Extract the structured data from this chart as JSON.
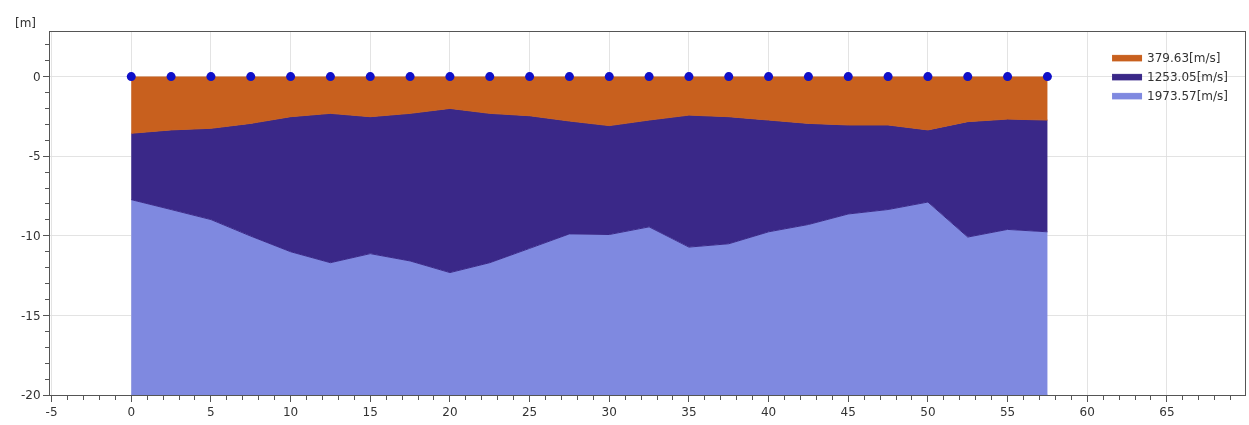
{
  "chart_data": {
    "type": "area",
    "ylabel": "[m]",
    "stacked": true,
    "x": [
      0,
      2.5,
      5,
      7.5,
      10,
      12.5,
      15,
      17.5,
      20,
      22.5,
      25,
      27.5,
      30,
      32.5,
      35,
      37.5,
      40,
      42.5,
      45,
      47.5,
      50,
      52.5,
      55,
      57.5
    ],
    "series": [
      {
        "name": "379.63[m/s]",
        "color": "#c8601e",
        "values": [
          -3.56,
          -3.35,
          -3.25,
          -2.94,
          -2.52,
          -2.31,
          -2.52,
          -2.31,
          -2.0,
          -2.31,
          -2.46,
          -2.79,
          -3.08,
          -2.73,
          -2.42,
          -2.52,
          -2.73,
          -2.94,
          -3.04,
          -3.04,
          -3.35,
          -2.83,
          -2.67,
          -2.73
        ]
      },
      {
        "name": "1253.05[m/s]",
        "color": "#3a2888",
        "values": [
          -4.17,
          -5.0,
          -5.73,
          -7.08,
          -8.48,
          -9.38,
          -8.6,
          -9.27,
          -10.31,
          -9.38,
          -8.33,
          -7.09,
          -6.84,
          -6.71,
          -8.29,
          -7.98,
          -7.02,
          -6.35,
          -5.59,
          -5.31,
          -4.53,
          -7.25,
          -6.93,
          -7.02
        ]
      },
      {
        "name": "1973.57[m/s]",
        "color": "#7f89e0",
        "values": [
          -12.27,
          -11.65,
          -11.02,
          -9.98,
          -9.0,
          -8.31,
          -8.88,
          -8.42,
          -7.69,
          -8.31,
          -9.21,
          -10.12,
          -10.08,
          -10.56,
          -9.29,
          -9.5,
          -10.25,
          -10.71,
          -11.37,
          -11.65,
          -12.12,
          -9.92,
          -10.4,
          -10.25
        ]
      },
      {
        "type": "scatter",
        "color": "#1010c8",
        "marker": "circle",
        "values": [
          0,
          0,
          0,
          0,
          0,
          0,
          0,
          0,
          0,
          0,
          0,
          0,
          0,
          0,
          0,
          0,
          0,
          0,
          0,
          0,
          0,
          0,
          0,
          0
        ]
      }
    ],
    "xlim": [
      -5.1,
      69.9
    ],
    "xticks": [
      -5,
      0,
      5,
      10,
      15,
      20,
      25,
      30,
      35,
      40,
      45,
      50,
      55,
      60,
      65
    ],
    "ylim": [
      -20,
      2.8
    ],
    "yticks": [
      -20,
      -15,
      -10,
      -5,
      0
    ],
    "grid": true,
    "legend": "top right"
  }
}
